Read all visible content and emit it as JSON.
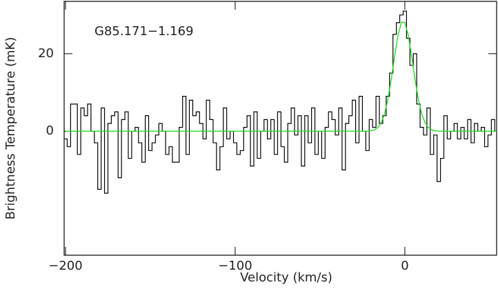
{
  "chart_data": {
    "type": "line",
    "annotation": "G85.171−1.169",
    "xlabel": "Velocity (km/s)",
    "ylabel": "Brightness Temperature (mK)",
    "xlim": [
      -200.8,
      54.1
    ],
    "ylim": [
      -32,
      33.5
    ],
    "xticks": [
      {
        "value": -200,
        "label": "−200"
      },
      {
        "value": -100,
        "label": "−100"
      },
      0
    ],
    "yticks": [
      0,
      20
    ],
    "x": [
      -200,
      -198,
      -196,
      -194,
      -192,
      -190,
      -188,
      -186,
      -184,
      -182,
      -180,
      -178,
      -176,
      -174,
      -172,
      -170,
      -168,
      -166,
      -164,
      -162,
      -160,
      -158,
      -156,
      -154,
      -152,
      -150,
      -148,
      -146,
      -144,
      -142,
      -140,
      -138,
      -136,
      -134,
      -132,
      -130,
      -128,
      -126,
      -124,
      -122,
      -120,
      -118,
      -116,
      -114,
      -112,
      -110,
      -108,
      -106,
      -104,
      -102,
      -100,
      -98,
      -96,
      -94,
      -92,
      -90,
      -88,
      -86,
      -84,
      -82,
      -80,
      -78,
      -76,
      -74,
      -72,
      -70,
      -68,
      -66,
      -64,
      -62,
      -60,
      -58,
      -56,
      -54,
      -52,
      -50,
      -48,
      -46,
      -44,
      -42,
      -40,
      -38,
      -36,
      -34,
      -32,
      -30,
      -28,
      -26,
      -24,
      -22,
      -20,
      -18,
      -16,
      -14,
      -12,
      -10,
      -8,
      -6,
      -4,
      -2,
      0,
      2,
      4,
      6,
      8,
      10,
      12,
      14,
      16,
      18,
      20,
      22,
      24,
      26,
      28,
      30,
      32,
      34,
      36,
      38,
      40,
      42,
      44,
      46,
      48,
      50,
      52,
      54
    ],
    "series": [
      {
        "color": "#000000",
        "step": true,
        "values": [
          -2,
          -4,
          7,
          7,
          -6,
          6,
          4,
          7,
          0,
          -3,
          -15,
          6,
          -16,
          2,
          4,
          5,
          -12,
          3,
          5,
          -7,
          0,
          1,
          -3,
          -8,
          4,
          -5,
          -3,
          -1,
          2,
          0,
          -6,
          -4,
          -8,
          -8,
          1,
          9,
          -6,
          8,
          4,
          5,
          2,
          -2,
          8,
          3,
          -3,
          -10,
          -4,
          6,
          -2,
          0,
          -3,
          -6,
          -5,
          1,
          4,
          -9,
          5,
          -7,
          0,
          3,
          -2,
          3,
          -6,
          5,
          -4,
          -8,
          2,
          6,
          -1,
          4,
          -9,
          4,
          -3,
          6,
          -6,
          0,
          -7,
          1,
          5,
          3,
          -1,
          6,
          -10,
          2,
          4,
          8,
          -3,
          9,
          0,
          -5,
          3,
          1,
          9,
          2,
          4,
          9,
          15,
          25,
          28,
          30,
          31,
          24,
          17,
          20,
          7,
          1,
          -1,
          6,
          -6,
          -1,
          -13,
          -7,
          4,
          -2,
          0,
          2,
          -2,
          1,
          -2,
          3,
          -3,
          2,
          0,
          1,
          -4,
          -1,
          3,
          0
        ]
      },
      {
        "color": "#22dd22",
        "step": false,
        "values": [
          0,
          0,
          0,
          0,
          0,
          0,
          0,
          0,
          0,
          0,
          0,
          0,
          0,
          0,
          0,
          0,
          0,
          0,
          0,
          0,
          0,
          0,
          0,
          0,
          0,
          0,
          0,
          0,
          0,
          0,
          0,
          0,
          0,
          0,
          0,
          0,
          0,
          0,
          0,
          0,
          0,
          0,
          0,
          0,
          0,
          0,
          0,
          0,
          0,
          0,
          0,
          0,
          0,
          0,
          0,
          0,
          0,
          0,
          0,
          0,
          0,
          0,
          0,
          0,
          0,
          0,
          0,
          0,
          0,
          0,
          0,
          0,
          0,
          0,
          0,
          0,
          0,
          0,
          0,
          0,
          0,
          0,
          0,
          0,
          0,
          0,
          0,
          0,
          0,
          0,
          0.11,
          0.33,
          0.9,
          2.1,
          4.4,
          8.2,
          13.4,
          19.4,
          24.8,
          28.1,
          28.1,
          24.8,
          19.4,
          13.4,
          8.2,
          4.4,
          2.1,
          0.9,
          0.33,
          0.11,
          0,
          0,
          0,
          0,
          0,
          0,
          0,
          0,
          0,
          0,
          0,
          0,
          0,
          0,
          0,
          0,
          0,
          0
        ]
      }
    ]
  }
}
